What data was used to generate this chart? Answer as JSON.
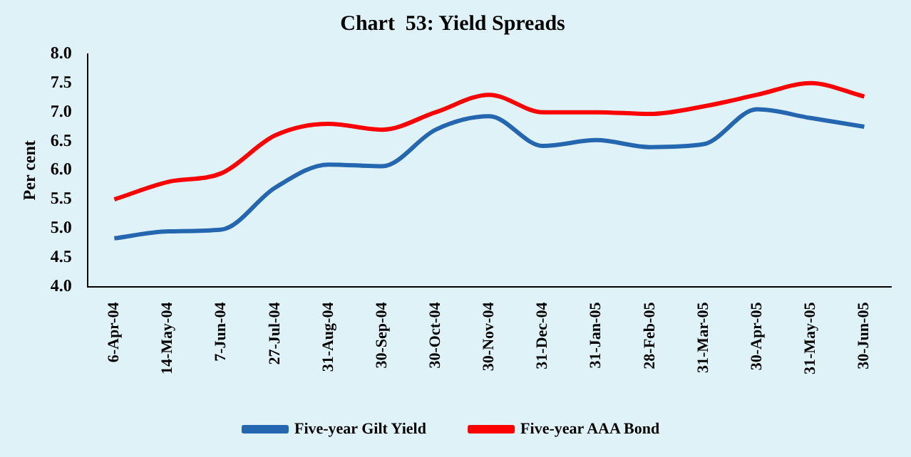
{
  "chart_data": {
    "type": "line",
    "title": "Chart  53: Yield Spreads",
    "ylabel": "Per cent",
    "categories": [
      "6-Apr-04",
      "14-May-04",
      "7-Jun-04",
      "27-Jul-04",
      "31-Aug-04",
      "30-Sep-04",
      "30-Oct-04",
      "30-Nov-04",
      "31-Dec-04",
      "31-Jan-05",
      "28-Feb-05",
      "31-Mar-05",
      "30-Apr-05",
      "31-May-05",
      "30-Jun-05"
    ],
    "series": [
      {
        "name": "Five-year Gilt Yield",
        "color": "#2466b0",
        "values": [
          4.83,
          4.95,
          4.98,
          5.7,
          6.1,
          6.07,
          6.7,
          6.93,
          6.42,
          6.52,
          6.4,
          6.45,
          7.05,
          6.9,
          6.75
        ]
      },
      {
        "name": "Five-year AAA Bond",
        "color": "#ff0000",
        "values": [
          5.5,
          5.8,
          5.95,
          6.6,
          6.8,
          6.7,
          7.0,
          7.3,
          7.0,
          7.0,
          6.97,
          7.1,
          7.3,
          7.5,
          7.27
        ]
      }
    ],
    "ylim": [
      4.0,
      8.0
    ],
    "yticks": [
      {
        "value": 4,
        "label": "4.0"
      },
      4.5,
      {
        "value": 5,
        "label": "5.0"
      },
      5.5,
      {
        "value": 6,
        "label": "6.0"
      },
      6.5,
      {
        "value": 7,
        "label": "7.0"
      },
      7.5,
      {
        "value": 8,
        "label": "8.0"
      }
    ],
    "grid": false,
    "legend": "bottom",
    "marker": "none",
    "line_style": "solid"
  }
}
